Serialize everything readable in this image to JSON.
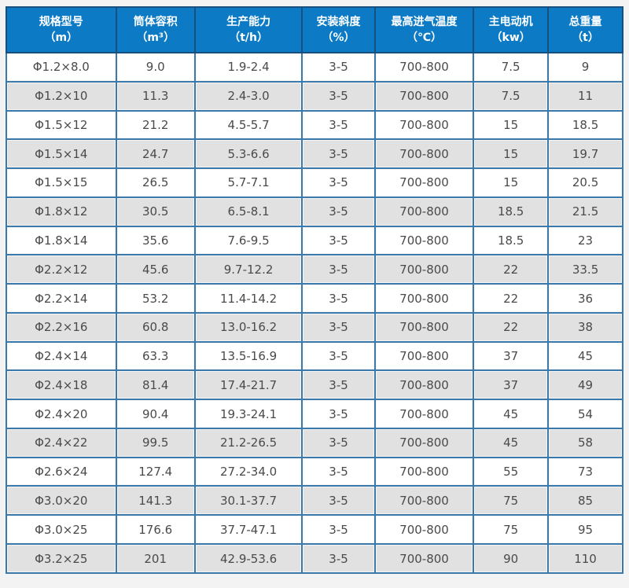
{
  "page": {
    "background_color": "#f3f3f3"
  },
  "colors": {
    "header_background": "#0c7ac4",
    "header_text": "#ffffff",
    "outer_border": "#25639b",
    "header_border": "#17507f",
    "grid_border": "#3a79a9",
    "row_alt_background": "#e1e1e1",
    "row_background": "#ffffff",
    "body_text": "#4a4a4a"
  },
  "chart_data": {
    "type": "table",
    "title": "",
    "columns": [
      {
        "label": "规格型号",
        "unit": "（m）"
      },
      {
        "label": "筒体容积",
        "unit": "（m³）"
      },
      {
        "label": "生产能力",
        "unit": "（t/h）"
      },
      {
        "label": "安装斜度",
        "unit": "（%）"
      },
      {
        "label": "最高进气温度",
        "unit": "（℃）"
      },
      {
        "label": "主电动机",
        "unit": "（kw）"
      },
      {
        "label": "总重量",
        "unit": "（t）"
      }
    ],
    "rows": [
      [
        "Φ1.2×8.0",
        "9.0",
        "1.9-2.4",
        "3-5",
        "700-800",
        "7.5",
        "9"
      ],
      [
        "Φ1.2×10",
        "11.3",
        "2.4-3.0",
        "3-5",
        "700-800",
        "7.5",
        "11"
      ],
      [
        "Φ1.5×12",
        "21.2",
        "4.5-5.7",
        "3-5",
        "700-800",
        "15",
        "18.5"
      ],
      [
        "Φ1.5×14",
        "24.7",
        "5.3-6.6",
        "3-5",
        "700-800",
        "15",
        "19.7"
      ],
      [
        "Φ1.5×15",
        "26.5",
        "5.7-7.1",
        "3-5",
        "700-800",
        "15",
        "20.5"
      ],
      [
        "Φ1.8×12",
        "30.5",
        "6.5-8.1",
        "3-5",
        "700-800",
        "18.5",
        "21.5"
      ],
      [
        "Φ1.8×14",
        "35.6",
        "7.6-9.5",
        "3-5",
        "700-800",
        "18.5",
        "23"
      ],
      [
        "Φ2.2×12",
        "45.6",
        "9.7-12.2",
        "3-5",
        "700-800",
        "22",
        "33.5"
      ],
      [
        "Φ2.2×14",
        "53.2",
        "11.4-14.2",
        "3-5",
        "700-800",
        "22",
        "36"
      ],
      [
        "Φ2.2×16",
        "60.8",
        "13.0-16.2",
        "3-5",
        "700-800",
        "22",
        "38"
      ],
      [
        "Φ2.4×14",
        "63.3",
        "13.5-16.9",
        "3-5",
        "700-800",
        "37",
        "45"
      ],
      [
        "Φ2.4×18",
        "81.4",
        "17.4-21.7",
        "3-5",
        "700-800",
        "37",
        "49"
      ],
      [
        "Φ2.4×20",
        "90.4",
        "19.3-24.1",
        "3-5",
        "700-800",
        "45",
        "54"
      ],
      [
        "Φ2.4×22",
        "99.5",
        "21.2-26.5",
        "3-5",
        "700-800",
        "45",
        "58"
      ],
      [
        "Φ2.6×24",
        "127.4",
        "27.2-34.0",
        "3-5",
        "700-800",
        "55",
        "73"
      ],
      [
        "Φ3.0×20",
        "141.3",
        "30.1-37.7",
        "3-5",
        "700-800",
        "75",
        "85"
      ],
      [
        "Φ3.0×25",
        "176.6",
        "37.7-47.1",
        "3-5",
        "700-800",
        "75",
        "95"
      ],
      [
        "Φ3.2×25",
        "201",
        "42.9-53.6",
        "3-5",
        "700-800",
        "90",
        "110"
      ]
    ]
  }
}
